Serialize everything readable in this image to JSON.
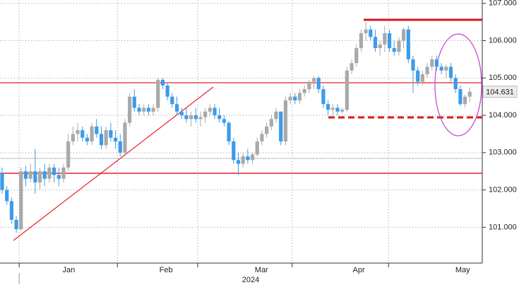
{
  "chart_data": {
    "type": "candlestick",
    "up_color": "#a9a9a9",
    "down_color": "#3d9be9",
    "grid": true,
    "year_label": "2024",
    "xlim": [
      -0.45,
      101.65
    ],
    "xticks": [
      {
        "value": 14.1,
        "label": "Jan"
      },
      {
        "value": 34.7,
        "label": "Feb"
      },
      {
        "value": 54.9,
        "label": "Mar"
      },
      {
        "value": 75.5,
        "label": "Apr"
      },
      {
        "value": 97.5,
        "label": "May"
      }
    ],
    "month_starts": [
      3.6,
      24.4,
      41.4,
      61.4,
      81.8
    ],
    "ylim": [
      100.04,
      107.09
    ],
    "yticks": [
      {
        "value": 101,
        "label": "101.000"
      },
      {
        "value": 102,
        "label": "102.000"
      },
      {
        "value": 103,
        "label": "103.000"
      },
      {
        "value": 104,
        "label": "104.000"
      },
      {
        "value": 105,
        "label": "105.000"
      },
      {
        "value": 106,
        "label": "106.000"
      },
      {
        "value": 107,
        "label": "107.000"
      }
    ],
    "open": [
      102.45,
      102.0,
      101.7,
      101.2,
      100.95,
      102.5,
      102.3,
      102.5,
      102.2,
      102.5,
      102.3,
      102.6,
      102.4,
      102.3,
      102.6,
      103.3,
      103.5,
      103.6,
      103.4,
      103.3,
      103.7,
      103.5,
      103.2,
      103.6,
      103.4,
      103.3,
      103.0,
      103.8,
      104.5,
      104.2,
      104.1,
      104.2,
      104.1,
      104.2,
      104.95,
      104.8,
      104.5,
      104.3,
      104.1,
      104.0,
      103.9,
      104.0,
      103.9,
      103.95,
      104.1,
      104.2,
      104.0,
      103.9,
      103.8,
      103.3,
      102.8,
      102.7,
      102.9,
      102.8,
      102.95,
      103.3,
      103.5,
      103.7,
      103.9,
      104.1,
      103.3,
      104.4,
      104.5,
      104.4,
      104.6,
      104.7,
      104.9,
      105.0,
      104.7,
      104.3,
      104.15,
      104.2,
      104.1,
      104.15,
      105.2,
      105.4,
      105.8,
      106.2,
      106.3,
      106.1,
      105.8,
      105.9,
      106.2,
      105.8,
      105.7,
      106.0,
      106.3,
      105.5,
      105.2,
      104.9,
      105.1,
      105.3,
      105.5,
      105.3,
      105.2,
      105.3,
      105.0,
      104.7,
      104.3,
      104.5
    ],
    "high": [
      102.6,
      102.1,
      101.8,
      101.3,
      102.6,
      102.65,
      102.7,
      103.1,
      102.6,
      102.7,
      102.7,
      102.7,
      102.6,
      102.7,
      103.5,
      103.7,
      103.8,
      103.7,
      103.5,
      103.8,
      103.9,
      103.7,
      103.7,
      103.8,
      103.6,
      103.5,
      103.9,
      104.6,
      104.7,
      104.3,
      104.3,
      104.3,
      104.3,
      105.0,
      105.0,
      104.85,
      104.6,
      104.5,
      104.2,
      104.2,
      104.1,
      104.2,
      104.1,
      104.2,
      104.3,
      104.3,
      104.2,
      104.0,
      103.85,
      103.4,
      103.0,
      103.0,
      103.1,
      103.0,
      103.4,
      103.6,
      103.8,
      104.0,
      104.2,
      104.1,
      104.5,
      104.6,
      104.6,
      104.7,
      104.8,
      104.95,
      105.05,
      105.05,
      104.8,
      104.4,
      104.3,
      104.3,
      104.2,
      105.3,
      105.5,
      105.9,
      106.3,
      106.5,
      106.4,
      106.3,
      106.0,
      106.4,
      106.3,
      106.0,
      106.1,
      106.35,
      106.4,
      105.6,
      105.3,
      105.2,
      105.4,
      105.6,
      105.6,
      105.4,
      105.35,
      105.4,
      105.1,
      104.8,
      104.55,
      104.75
    ],
    "low": [
      101.9,
      101.6,
      101.1,
      100.85,
      100.9,
      102.1,
      102.2,
      101.9,
      102.0,
      102.1,
      102.2,
      102.2,
      102.1,
      102.2,
      102.5,
      103.2,
      103.3,
      103.3,
      103.2,
      103.2,
      103.4,
      103.1,
      103.1,
      103.3,
      103.1,
      102.9,
      102.9,
      103.7,
      104.1,
      104.0,
      104.0,
      104.0,
      104.0,
      104.1,
      104.7,
      104.4,
      104.2,
      104.0,
      103.9,
      103.8,
      103.7,
      103.8,
      103.7,
      103.8,
      104.0,
      103.9,
      103.8,
      103.7,
      103.2,
      102.7,
      102.4,
      102.6,
      102.7,
      102.7,
      102.9,
      103.2,
      103.4,
      103.6,
      103.8,
      103.2,
      103.2,
      104.3,
      104.3,
      104.3,
      104.5,
      104.6,
      104.7,
      104.6,
      104.2,
      104.0,
      104.0,
      104.0,
      104.05,
      104.1,
      105.1,
      105.3,
      105.7,
      106.0,
      106.0,
      105.7,
      105.6,
      105.7,
      105.7,
      105.6,
      105.6,
      105.8,
      105.4,
      104.6,
      104.8,
      104.8,
      105.0,
      105.2,
      105.2,
      105.1,
      105.0,
      104.9,
      104.6,
      104.25,
      104.2,
      104.35
    ],
    "close": [
      102.0,
      101.7,
      101.2,
      100.95,
      102.5,
      102.3,
      102.5,
      102.2,
      102.5,
      102.3,
      102.6,
      102.4,
      102.3,
      102.6,
      103.3,
      103.5,
      103.6,
      103.4,
      103.3,
      103.7,
      103.5,
      103.2,
      103.6,
      103.4,
      103.3,
      103.0,
      103.8,
      104.5,
      104.2,
      104.1,
      104.2,
      104.1,
      104.2,
      104.95,
      104.8,
      104.5,
      104.3,
      104.1,
      104.0,
      103.9,
      104.0,
      103.9,
      103.95,
      104.1,
      104.2,
      104.0,
      103.9,
      103.8,
      103.3,
      102.8,
      102.7,
      102.9,
      102.8,
      102.95,
      103.3,
      103.5,
      103.7,
      103.9,
      104.1,
      103.3,
      104.4,
      104.5,
      104.4,
      104.6,
      104.7,
      104.9,
      105.0,
      104.7,
      104.3,
      104.15,
      104.2,
      104.1,
      104.15,
      105.2,
      105.4,
      105.8,
      106.2,
      106.3,
      106.1,
      105.8,
      105.9,
      106.2,
      105.8,
      105.7,
      106.0,
      106.3,
      105.5,
      105.2,
      104.9,
      105.1,
      105.3,
      105.5,
      105.3,
      105.2,
      105.3,
      105.0,
      104.7,
      104.3,
      104.5,
      104.631
    ]
  }
}
